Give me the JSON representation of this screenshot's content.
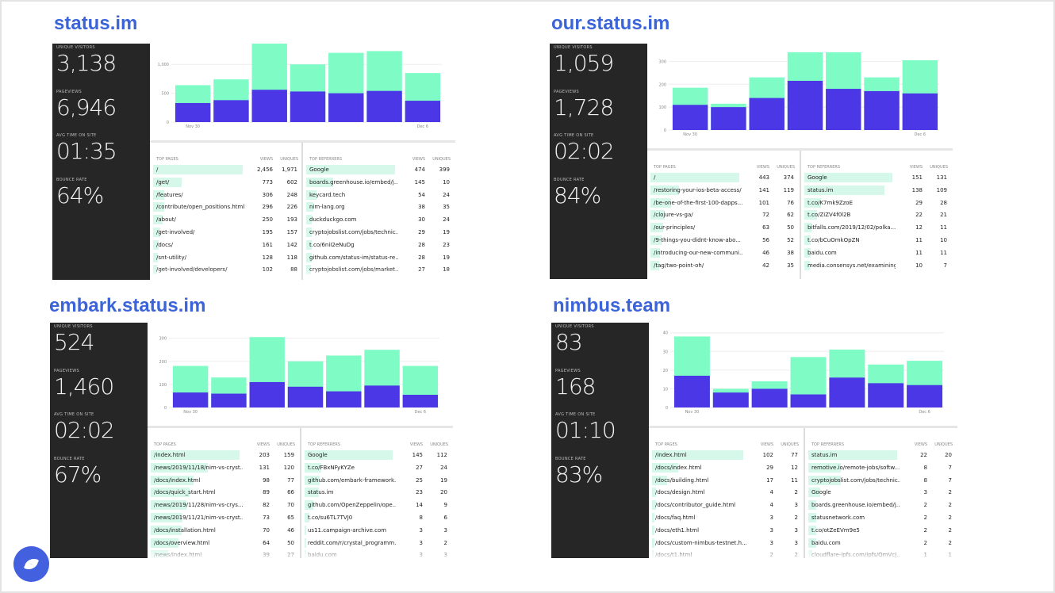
{
  "labels": {
    "unique_visitors": "UNIQUE VISITORS",
    "pageviews": "PAGEVIEWS",
    "avg_time": "AVG TIME ON SITE",
    "bounce_rate": "BOUNCE RATE",
    "top_pages": "TOP PAGES",
    "top_referrers": "TOP REFERRERS",
    "views": "VIEWS",
    "uniques": "UNIQUES"
  },
  "colors": {
    "bar_views": "#7ffcc6",
    "bar_uniques": "#4b37e6",
    "side_bg": "#262626",
    "title": "#3b64d8",
    "logo": "#4360df"
  },
  "sites": [
    {
      "title": "status.im",
      "stats": {
        "unique_visitors": "3,138",
        "pageviews": "6,946",
        "avg_time": "01:35",
        "bounce_rate": "64%"
      },
      "chart_data": {
        "type": "bar",
        "x_first": "Nov 30",
        "x_last": "Dec 6",
        "yticks": [
          "0",
          "500",
          "1,000"
        ],
        "ytick_values": [
          0,
          500,
          1000
        ],
        "ylim": [
          0,
          1250
        ],
        "series": [
          {
            "values": [
              640,
              740,
              1390,
              1000,
              1200,
              1230,
              850
            ]
          },
          {
            "values": [
              330,
              380,
              560,
              530,
              500,
              540,
              370
            ]
          }
        ]
      },
      "pages": [
        {
          "path": "/",
          "views": "2,456",
          "uniques": "1,971"
        },
        {
          "path": "/get/",
          "views": "773",
          "uniques": "602"
        },
        {
          "path": "/features/",
          "views": "306",
          "uniques": "248"
        },
        {
          "path": "/contribute/open_positions.html",
          "views": "296",
          "uniques": "226"
        },
        {
          "path": "/about/",
          "views": "250",
          "uniques": "193"
        },
        {
          "path": "/get-involved/",
          "views": "195",
          "uniques": "157"
        },
        {
          "path": "/docs/",
          "views": "161",
          "uniques": "142"
        },
        {
          "path": "/snt-utility/",
          "views": "128",
          "uniques": "118"
        },
        {
          "path": "/get-involved/developers/",
          "views": "102",
          "uniques": "88"
        }
      ],
      "referrers": [
        {
          "path": "Google",
          "views": "474",
          "uniques": "399"
        },
        {
          "path": "boards.greenhouse.io/embed/j...",
          "views": "145",
          "uniques": "10"
        },
        {
          "path": "keycard.tech",
          "views": "54",
          "uniques": "24"
        },
        {
          "path": "nim-lang.org",
          "views": "38",
          "uniques": "35"
        },
        {
          "path": "duckduckgo.com",
          "views": "30",
          "uniques": "24"
        },
        {
          "path": "cryptojobslist.com/jobs/technic...",
          "views": "29",
          "uniques": "19"
        },
        {
          "path": "t.co/6niI2eNuDg",
          "views": "28",
          "uniques": "23"
        },
        {
          "path": "github.com/status-im/status-re...",
          "views": "28",
          "uniques": "19"
        },
        {
          "path": "cryptojobslist.com/jobs/market...",
          "views": "27",
          "uniques": "18"
        }
      ]
    },
    {
      "title": "our.status.im",
      "stats": {
        "unique_visitors": "1,059",
        "pageviews": "1,728",
        "avg_time": "02:02",
        "bounce_rate": "84%"
      },
      "chart_data": {
        "type": "bar",
        "x_first": "Nov 30",
        "x_last": "Dec 6",
        "yticks": [
          "0",
          "100",
          "200",
          "300"
        ],
        "ytick_values": [
          0,
          100,
          200,
          300
        ],
        "ylim": [
          0,
          350
        ],
        "series": [
          {
            "values": [
              185,
              115,
              230,
              340,
              340,
              230,
              305
            ]
          },
          {
            "values": [
              110,
              100,
              140,
              215,
              180,
              170,
              160
            ]
          }
        ]
      },
      "pages": [
        {
          "path": "/",
          "views": "443",
          "uniques": "374"
        },
        {
          "path": "/restoring-your-ios-beta-access/",
          "views": "141",
          "uniques": "119"
        },
        {
          "path": "/be-one-of-the-first-100-dapps...",
          "views": "101",
          "uniques": "76"
        },
        {
          "path": "/clojure-vs-ga/",
          "views": "72",
          "uniques": "62"
        },
        {
          "path": "/our-principles/",
          "views": "63",
          "uniques": "50"
        },
        {
          "path": "/9-things-you-didnt-know-abo...",
          "views": "56",
          "uniques": "52"
        },
        {
          "path": "/introducing-our-new-communi...",
          "views": "46",
          "uniques": "38"
        },
        {
          "path": "/tag/two-point-oh/",
          "views": "42",
          "uniques": "35"
        }
      ],
      "referrers": [
        {
          "path": "Google",
          "views": "151",
          "uniques": "131"
        },
        {
          "path": "status.im",
          "views": "138",
          "uniques": "109"
        },
        {
          "path": "t.co/K7mk9ZzoE",
          "views": "29",
          "uniques": "28"
        },
        {
          "path": "t.co/ZiZV4f0l2B",
          "views": "22",
          "uniques": "21"
        },
        {
          "path": "bitfalls.com/2019/12/02/polka...",
          "views": "12",
          "uniques": "11"
        },
        {
          "path": "t.co/bCuOmkOpZN",
          "views": "11",
          "uniques": "10"
        },
        {
          "path": "baidu.com",
          "views": "11",
          "uniques": "11"
        },
        {
          "path": "media.consensys.net/examining...",
          "views": "10",
          "uniques": "7"
        }
      ]
    },
    {
      "title": "embark.status.im",
      "stats": {
        "unique_visitors": "524",
        "pageviews": "1,460",
        "avg_time": "02:02",
        "bounce_rate": "67%"
      },
      "chart_data": {
        "type": "bar",
        "x_first": "Nov 30",
        "x_last": "Dec 6",
        "yticks": [
          "0",
          "100",
          "200",
          "300"
        ],
        "ytick_values": [
          0,
          100,
          200,
          300
        ],
        "ylim": [
          0,
          340
        ],
        "series": [
          {
            "values": [
              180,
              130,
              305,
              200,
              225,
              250,
              180
            ]
          },
          {
            "values": [
              65,
              60,
              110,
              90,
              70,
              95,
              55
            ]
          }
        ]
      },
      "pages": [
        {
          "path": "/index.html",
          "views": "203",
          "uniques": "159"
        },
        {
          "path": "/news/2019/11/18/nim-vs-cryst...",
          "views": "131",
          "uniques": "120"
        },
        {
          "path": "/docs/index.html",
          "views": "98",
          "uniques": "77"
        },
        {
          "path": "/docs/quick_start.html",
          "views": "89",
          "uniques": "66"
        },
        {
          "path": "/news/2019/11/28/nim-vs-crys...",
          "views": "82",
          "uniques": "70"
        },
        {
          "path": "/news/2019/11/21/nim-vs-cryst...",
          "views": "73",
          "uniques": "65"
        },
        {
          "path": "/docs/installation.html",
          "views": "70",
          "uniques": "46"
        },
        {
          "path": "/docs/overview.html",
          "views": "64",
          "uniques": "50"
        },
        {
          "path": "/news/index.html",
          "views": "39",
          "uniques": "27"
        }
      ],
      "referrers": [
        {
          "path": "Google",
          "views": "145",
          "uniques": "112"
        },
        {
          "path": "t.co/FBxNFyKYZe",
          "views": "27",
          "uniques": "24"
        },
        {
          "path": "github.com/embark-framework...",
          "views": "25",
          "uniques": "19"
        },
        {
          "path": "status.im",
          "views": "23",
          "uniques": "20"
        },
        {
          "path": "github.com/OpenZeppelin/ope...",
          "views": "14",
          "uniques": "9"
        },
        {
          "path": "t.co/su6TL7TVJ0",
          "views": "8",
          "uniques": "6"
        },
        {
          "path": "us11.campaign-archive.com",
          "views": "3",
          "uniques": "3"
        },
        {
          "path": "reddit.com/r/crystal_programm...",
          "views": "3",
          "uniques": "2"
        },
        {
          "path": "baidu.com",
          "views": "3",
          "uniques": "3"
        }
      ]
    },
    {
      "title": "nimbus.team",
      "stats": {
        "unique_visitors": "83",
        "pageviews": "168",
        "avg_time": "01:10",
        "bounce_rate": "83%"
      },
      "chart_data": {
        "type": "bar",
        "x_first": "Nov 30",
        "x_last": "Dec 6",
        "yticks": [
          "0",
          "10",
          "20",
          "30",
          "40"
        ],
        "ytick_values": [
          0,
          10,
          20,
          30,
          40
        ],
        "ylim": [
          0,
          42
        ],
        "series": [
          {
            "values": [
              38,
              10,
              14,
              27,
              31,
              23,
              25
            ]
          },
          {
            "values": [
              17,
              8,
              10,
              7,
              16,
              13,
              12
            ]
          }
        ]
      },
      "pages": [
        {
          "path": "/index.html",
          "views": "102",
          "uniques": "77"
        },
        {
          "path": "/docs/index.html",
          "views": "29",
          "uniques": "12"
        },
        {
          "path": "/docs/building.html",
          "views": "17",
          "uniques": "11"
        },
        {
          "path": "/docs/design.html",
          "views": "4",
          "uniques": "2"
        },
        {
          "path": "/docs/contributor_guide.html",
          "views": "4",
          "uniques": "3"
        },
        {
          "path": "/docs/faq.html",
          "views": "3",
          "uniques": "2"
        },
        {
          "path": "/docs/eth1.html",
          "views": "3",
          "uniques": "3"
        },
        {
          "path": "/docs/custom-nimbus-testnet.h...",
          "views": "3",
          "uniques": "3"
        },
        {
          "path": "/docs/t1.html",
          "views": "2",
          "uniques": "2"
        }
      ],
      "referrers": [
        {
          "path": "status.im",
          "views": "22",
          "uniques": "20"
        },
        {
          "path": "remotive.io/remote-jobs/softw...",
          "views": "8",
          "uniques": "7"
        },
        {
          "path": "cryptojobslist.com/jobs/technic...",
          "views": "8",
          "uniques": "7"
        },
        {
          "path": "Google",
          "views": "3",
          "uniques": "2"
        },
        {
          "path": "boards.greenhouse.io/embed/j...",
          "views": "2",
          "uniques": "2"
        },
        {
          "path": "statusnetwork.com",
          "views": "2",
          "uniques": "2"
        },
        {
          "path": "t.co/otZeEVm9e5",
          "views": "2",
          "uniques": "2"
        },
        {
          "path": "baidu.com",
          "views": "2",
          "uniques": "2"
        },
        {
          "path": "cloudflare-ipfs.com/ipfs/QmVcJ...",
          "views": "1",
          "uniques": "1"
        }
      ]
    }
  ]
}
